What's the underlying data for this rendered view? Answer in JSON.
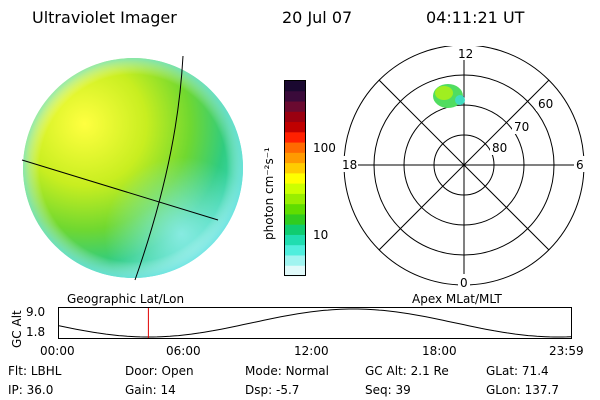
{
  "header": {
    "title": "Ultraviolet Imager",
    "date": "20 Jul 07",
    "time": "04:11:21 UT"
  },
  "colorbar": {
    "unit": "photon cm⁻²s⁻¹",
    "ticks": [
      "100",
      "10"
    ],
    "colors_top_to_bottom": [
      "#1a0830",
      "#3a0a3a",
      "#6a0a30",
      "#9a0010",
      "#c00000",
      "#ff2000",
      "#ff6a00",
      "#ff9a00",
      "#ffcc00",
      "#ffff00",
      "#ccff00",
      "#99ee00",
      "#60dd00",
      "#30cc20",
      "#10cc70",
      "#20ddb0",
      "#50eedd",
      "#a0f4f0",
      "#e0fafa"
    ]
  },
  "left_panel": {
    "label": "Geographic Lat/Lon"
  },
  "right_panel": {
    "label": "Apex MLat/MLT",
    "mlt_labels": [
      "12",
      "18",
      "6",
      "0"
    ],
    "lat_labels": [
      "60",
      "70",
      "80"
    ]
  },
  "altitude_plot": {
    "ylabel": "GC Alt",
    "yticks": [
      "9.0",
      "1.8"
    ],
    "xticks": [
      "00:00",
      "06:00",
      "12:00",
      "18:00",
      "23:59"
    ],
    "current_time_hours": 4.19,
    "marker_color": "#e00000"
  },
  "info": {
    "row1": [
      {
        "label": "Flt:",
        "value": "LBHL"
      },
      {
        "label": "Door:",
        "value": "Open"
      },
      {
        "label": "Mode:",
        "value": "Normal"
      },
      {
        "label": "GC Alt:",
        "value": "2.1 Re"
      },
      {
        "label": "GLat:",
        "value": "71.4"
      }
    ],
    "row2": [
      {
        "label": "IP:",
        "value": "36.0"
      },
      {
        "label": "Gain:",
        "value": "14"
      },
      {
        "label": "Dsp:",
        "value": "-5.7"
      },
      {
        "label": "Seq:",
        "value": "39"
      },
      {
        "label": "GLon:",
        "value": "137.7"
      }
    ]
  }
}
